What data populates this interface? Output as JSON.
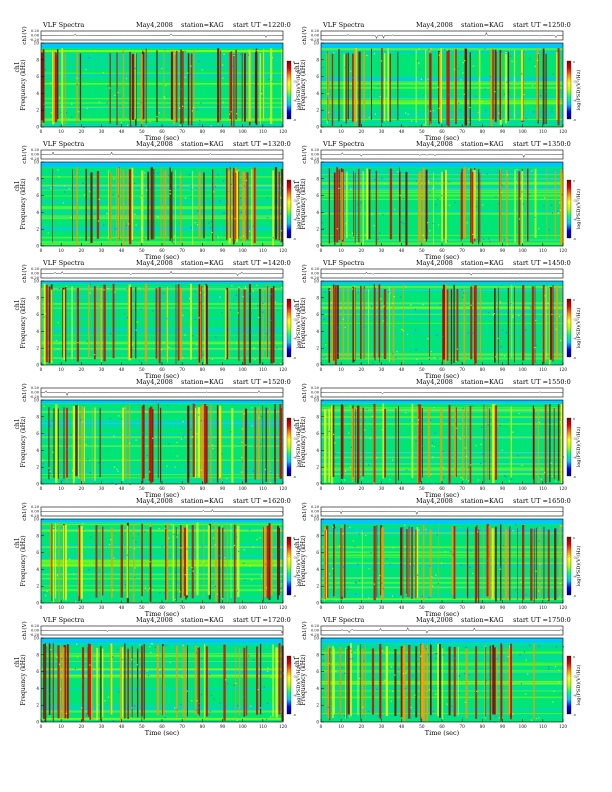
{
  "figure": {
    "colorbar_colors": [
      "#00006e",
      "#0000ff",
      "#00c8ff",
      "#00ff7f",
      "#b4ff00",
      "#ffff00",
      "#ff8c00",
      "#e60000",
      "#8b0000"
    ],
    "tick_labels_x": [
      "0",
      "10",
      "20",
      "30",
      "40",
      "50",
      "60",
      "70",
      "80",
      "90",
      "100",
      "110",
      "120"
    ],
    "tick_labels_freq": [
      "0",
      "2",
      "4",
      "6",
      "8",
      "10"
    ],
    "tick_labels_ch": [
      "-0.20",
      "0.00",
      "0.20"
    ],
    "cbar_tick_labels": [
      "0",
      "-2",
      "-4",
      "-6"
    ]
  },
  "chart_data": [
    {
      "type": "heatmap",
      "title": "VLF Spectra",
      "date": "May4,2008",
      "station": "station=KAG",
      "start": "start UT =1220:0",
      "xlabel": "Time (sec)",
      "ylabel": "Frequency (kHz)",
      "ylabel_prefix": "ch1",
      "ch_label": "ch1(V)",
      "colorbar_label": "log(PSD)(V²/Hz)",
      "xlim": [
        0,
        120
      ],
      "ylim": [
        0,
        10
      ],
      "ch_ylim": [
        -0.2,
        0.2
      ],
      "cutoff_khz": 9.4
    },
    {
      "type": "heatmap",
      "title": "VLF Spectra",
      "date": "May4,2008",
      "station": "station=KAG",
      "start": "start UT =1250:0",
      "xlabel": "Time (sec)",
      "ylabel": "Frequency (kHz)",
      "ylabel_prefix": "ch1",
      "ch_label": "ch1(V)",
      "colorbar_label": "log(PSD)(V²/Hz)",
      "xlim": [
        0,
        120
      ],
      "ylim": [
        0,
        10
      ],
      "ch_ylim": [
        -0.2,
        0.2
      ],
      "cutoff_khz": 9.4
    },
    {
      "type": "heatmap",
      "title": "VLF Spectra",
      "date": "May4,2008",
      "station": "station=KAG",
      "start": "start UT =1320:0",
      "xlabel": "Time (sec)",
      "ylabel": "Frequency (kHz)",
      "ylabel_prefix": "ch1",
      "ch_label": "ch1(V)",
      "colorbar_label": "log(PSD)(V²/Hz)",
      "xlim": [
        0,
        120
      ],
      "ylim": [
        0,
        10
      ],
      "ch_ylim": [
        -0.2,
        0.2
      ],
      "cutoff_khz": 9.4
    },
    {
      "type": "heatmap",
      "title": "VLF Spectra",
      "date": "May4,2008",
      "station": "station=KAG",
      "start": "start UT =1350:0",
      "xlabel": "Time (sec)",
      "ylabel": "Frequency (kHz)",
      "ylabel_prefix": "ch1",
      "ch_label": "ch1(V)",
      "colorbar_label": "log(PSD)(V²/Hz)",
      "xlim": [
        0,
        120
      ],
      "ylim": [
        0,
        10
      ],
      "ch_ylim": [
        -0.2,
        0.2
      ],
      "cutoff_khz": 9.4
    },
    {
      "type": "heatmap",
      "title": "VLF Spectra",
      "date": "May4,2008",
      "station": "station=KAG",
      "start": "start UT =1420:0",
      "xlabel": "Time (sec)",
      "ylabel": "Frequency (kHz)",
      "ylabel_prefix": "ch1",
      "ch_label": "ch1(V)",
      "colorbar_label": "log(PSD)(V²/Hz)",
      "xlim": [
        0,
        120
      ],
      "ylim": [
        0,
        10
      ],
      "ch_ylim": [
        -0.2,
        0.2
      ],
      "cutoff_khz": 9.7
    },
    {
      "type": "heatmap",
      "title": "VLF Spectra",
      "date": "May4,2008",
      "station": "station=KAG",
      "start": "start UT =1450:0",
      "xlabel": "Time (sec)",
      "ylabel": "Frequency (kHz)",
      "ylabel_prefix": "ch1",
      "ch_label": "ch1(V)",
      "colorbar_label": "log(PSD)(V²/Hz)",
      "xlim": [
        0,
        120
      ],
      "ylim": [
        0,
        10
      ],
      "ch_ylim": [
        -0.2,
        0.2
      ],
      "cutoff_khz": 9.7
    },
    {
      "type": "heatmap",
      "title": "",
      "date": "May4,2008",
      "station": "station=KAG",
      "start": "start UT =1520:0",
      "xlabel": "Time (sec)",
      "ylabel": "Frequency (kHz)",
      "ylabel_prefix": "ch1",
      "ch_label": "ch1(V)",
      "colorbar_label": "log(PSD)(V²/Hz)",
      "xlim": [
        0,
        120
      ],
      "ylim": [
        0,
        10
      ],
      "ch_ylim": [
        -0.2,
        0.2
      ],
      "cutoff_khz": 9.6
    },
    {
      "type": "heatmap",
      "title": "",
      "date": "May4,2008",
      "station": "station=KAG",
      "start": "start UT =1550:0",
      "xlabel": "Time (sec)",
      "ylabel": "Frequency (kHz)",
      "ylabel_prefix": "ch1",
      "ch_label": "ch1(V)",
      "colorbar_label": "log(PSD)(V²/Hz)",
      "xlim": [
        0,
        120
      ],
      "ylim": [
        0,
        10
      ],
      "ch_ylim": [
        -0.2,
        0.2
      ],
      "cutoff_khz": 9.6
    },
    {
      "type": "heatmap",
      "title": "",
      "date": "May4,2008",
      "station": "station=KAG",
      "start": "start UT =1620:0",
      "xlabel": "Time (sec)",
      "ylabel": "Frequency (kHz)",
      "ylabel_prefix": "ch1",
      "ch_label": "ch1(V)",
      "colorbar_label": "log(PSD)(V²/Hz)",
      "xlim": [
        0,
        120
      ],
      "ylim": [
        0,
        10
      ],
      "ch_ylim": [
        -0.2,
        0.2
      ],
      "cutoff_khz": 9.6
    },
    {
      "type": "heatmap",
      "title": "",
      "date": "May4,2008",
      "station": "station=KAG",
      "start": "start UT =1650:0",
      "xlabel": "Time (sec)",
      "ylabel": "Frequency (kHz)",
      "ylabel_prefix": "ch1",
      "ch_label": "ch1(V)",
      "colorbar_label": "log(PSD)(V²/Hz)",
      "xlim": [
        0,
        120
      ],
      "ylim": [
        0,
        10
      ],
      "ch_ylim": [
        -0.2,
        0.2
      ],
      "cutoff_khz": 9.4
    },
    {
      "type": "heatmap",
      "title": "VLF Spectra",
      "date": "May4,2008",
      "station": "station=KAG",
      "start": "start UT =1720:0",
      "xlabel": "Time (sec)",
      "ylabel": "Frequency (kHz)",
      "ylabel_prefix": "ch1",
      "ch_label": "ch1(V)",
      "colorbar_label": "log(PSD)(V²/Hz)",
      "xlim": [
        0,
        120
      ],
      "ylim": [
        0,
        10
      ],
      "ch_ylim": [
        -0.2,
        0.2
      ],
      "cutoff_khz": 9.4
    },
    {
      "type": "heatmap",
      "title": "VLF Spectra",
      "date": "May4,2008",
      "station": "station=KAG",
      "start": "start UT =1750:0",
      "xlabel": "Time (sec)",
      "ylabel": "Frequency (kHz)",
      "ylabel_prefix": "ch1",
      "ch_label": "ch1(V)",
      "colorbar_label": "log(PSD)(V²/Hz)",
      "xlim": [
        0,
        120
      ],
      "ylim": [
        0,
        10
      ],
      "ch_ylim": [
        -0.2,
        0.2
      ],
      "cutoff_khz": 9.4
    }
  ]
}
